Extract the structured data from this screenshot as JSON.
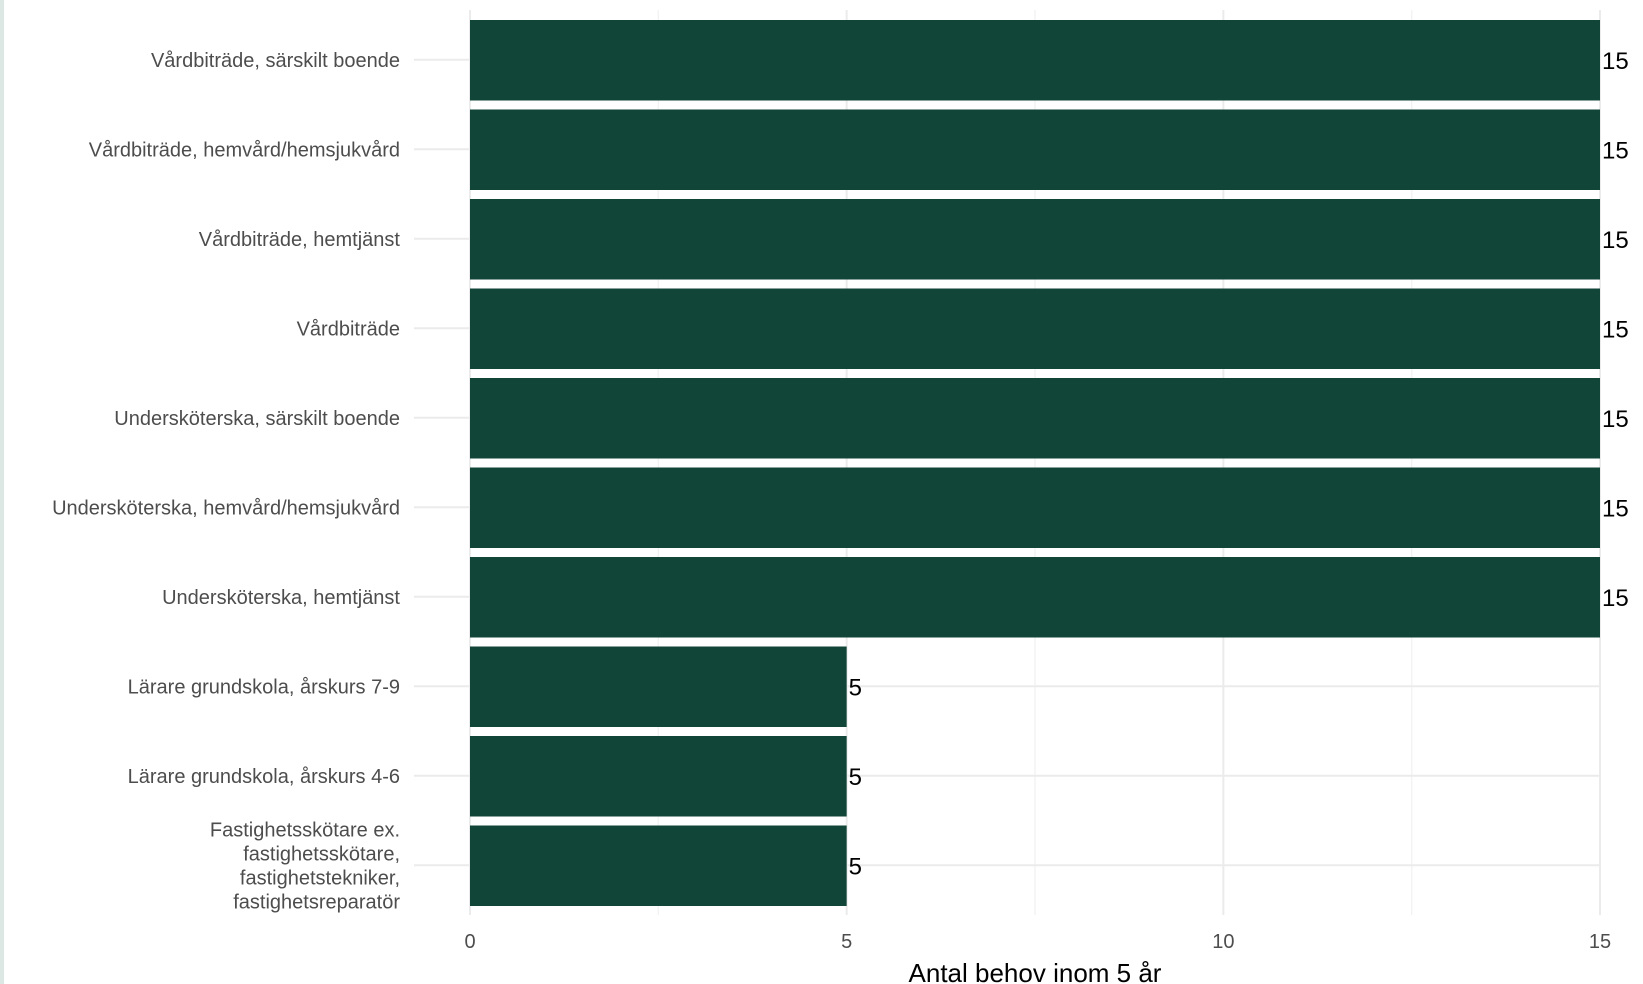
{
  "chart_data": {
    "type": "bar",
    "orientation": "horizontal",
    "categories": [
      "Vårdbiträde, särskilt boende",
      "Vårdbiträde, hemvård/hemsjukvård",
      "Vårdbiträde, hemtjänst",
      "Vårdbiträde",
      "Undersköterska, särskilt boende",
      "Undersköterska, hemvård/hemsjukvård",
      "Undersköterska, hemtjänst",
      "Lärare grundskola, årskurs 7-9",
      "Lärare grundskola, årskurs 4-6",
      "Fastighetsskötare ex. fastighetsskötare, fastighetstekniker, fastighetsreparatör"
    ],
    "category_lines": [
      [
        "Vårdbiträde, särskilt boende"
      ],
      [
        "Vårdbiträde, hemvård/hemsjukvård"
      ],
      [
        "Vårdbiträde, hemtjänst"
      ],
      [
        "Vårdbiträde"
      ],
      [
        "Undersköterska, särskilt boende"
      ],
      [
        "Undersköterska, hemvård/hemsjukvård"
      ],
      [
        "Undersköterska, hemtjänst"
      ],
      [
        "Lärare grundskola, årskurs 7-9"
      ],
      [
        "Lärare grundskola, årskurs 4-6"
      ],
      [
        "Fastighetsskötare ex.",
        "fastighetsskötare,",
        "fastighetstekniker,",
        "fastighetsreparatör"
      ]
    ],
    "values": [
      15,
      15,
      15,
      15,
      15,
      15,
      15,
      5,
      5,
      5
    ],
    "data_labels": [
      "15",
      "15",
      "15",
      "15",
      "15",
      "15",
      "15",
      "5",
      "5",
      "5"
    ],
    "xlabel": "Antal behov inom 5 år",
    "ylabel": "",
    "xlim": [
      0,
      15
    ],
    "xticks": [
      0,
      5,
      10,
      15
    ],
    "xtick_labels": [
      "0",
      "5",
      "10",
      "15"
    ],
    "grid": true,
    "bar_color": "#104537"
  }
}
